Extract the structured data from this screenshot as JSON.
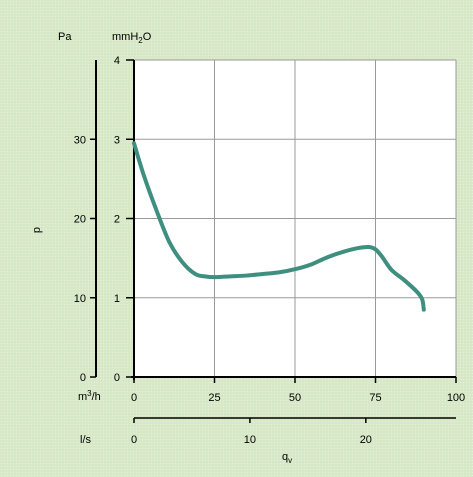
{
  "chart_data": {
    "type": "line",
    "title": "",
    "y_axis_left": {
      "unit": "Pa",
      "label": "p",
      "ticks": [
        "0",
        "10",
        "20",
        "30"
      ],
      "tick_values": [
        0,
        10,
        20,
        30
      ]
    },
    "y_axis_right": {
      "unit_parts": [
        "mmH",
        "2",
        "O"
      ],
      "ticks": [
        "0",
        "1",
        "2",
        "3",
        "4"
      ],
      "ylim": [
        0,
        4
      ]
    },
    "x_axis_m3h": {
      "unit_parts": [
        "m",
        "3",
        "/h"
      ],
      "ticks": [
        "0",
        "25",
        "50",
        "75",
        "100"
      ],
      "xlim": [
        0,
        100
      ]
    },
    "x_axis_ls": {
      "unit": "l/s",
      "ticks": [
        "0",
        "10",
        "20"
      ],
      "tick_values": [
        0,
        10,
        20
      ],
      "max": 27.78
    },
    "xlabel_parts": [
      "q",
      "v"
    ],
    "grid": true,
    "line_color": "#3e8f80",
    "series": [
      {
        "x": [
          0,
          3,
          7,
          11,
          15,
          19,
          22,
          25,
          30,
          35,
          40,
          45,
          50,
          55,
          60,
          65,
          70,
          73,
          75,
          77,
          80,
          84,
          88,
          89.5,
          90
        ],
        "values": [
          2.95,
          2.55,
          2.1,
          1.7,
          1.45,
          1.3,
          1.27,
          1.26,
          1.27,
          1.28,
          1.3,
          1.32,
          1.36,
          1.42,
          1.51,
          1.58,
          1.63,
          1.64,
          1.61,
          1.52,
          1.35,
          1.22,
          1.07,
          0.98,
          0.85
        ]
      }
    ]
  }
}
